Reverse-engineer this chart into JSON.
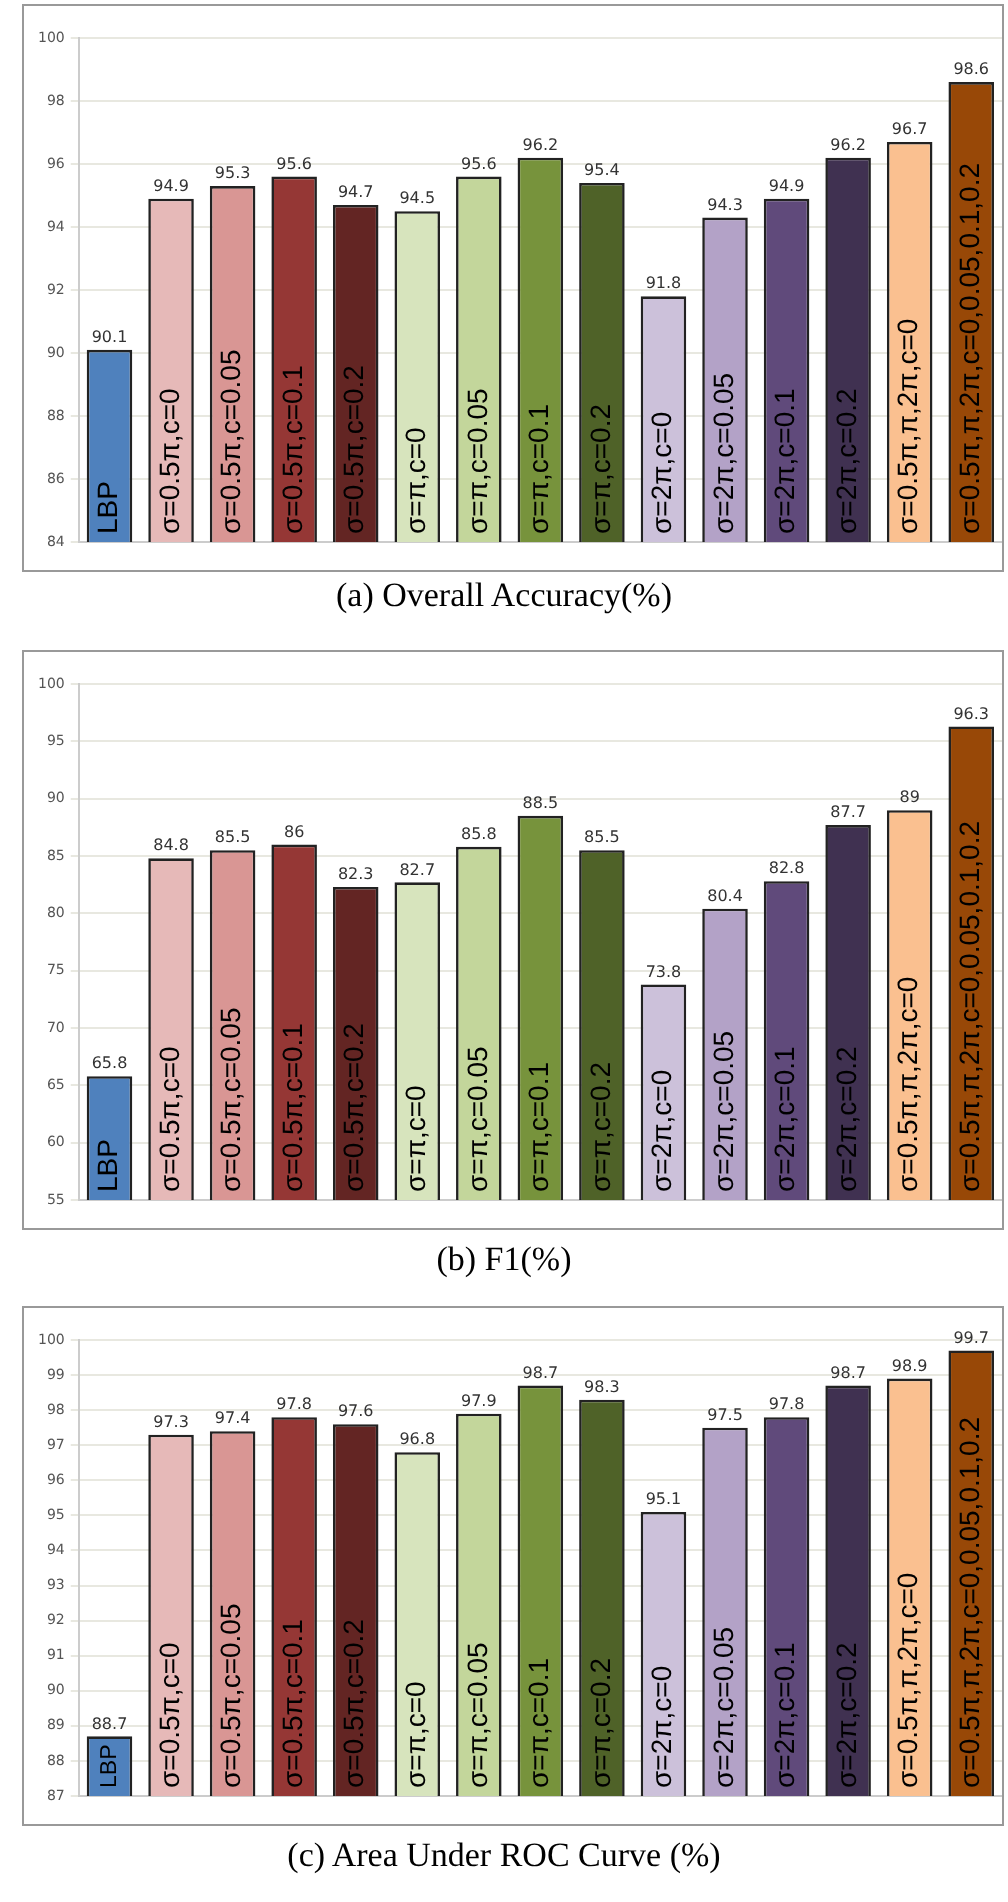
{
  "chart_data": [
    {
      "type": "bar",
      "title": "(a) Overall Accuracy(%)",
      "categories": [
        "LBP",
        "σ=0.5π,c=0",
        "σ=0.5π,c=0.05",
        "σ=0.5π,c=0.1",
        "σ=0.5π,c=0.2",
        "σ=π,c=0",
        "σ=π,c=0.05",
        "σ=π,c=0.1",
        "σ=π,c=0.2",
        "σ=2π,c=0",
        "σ=2π,c=0.05",
        "σ=2π,c=0.1",
        "σ=2π,c=0.2",
        "σ=0.5π,π,2π,c=0",
        "σ=0.5π,π,2π,c=0,0.05,0.1,0.2"
      ],
      "values": [
        90.1,
        94.9,
        95.3,
        95.6,
        94.7,
        94.5,
        95.6,
        96.2,
        95.4,
        91.8,
        94.3,
        94.9,
        96.2,
        96.7,
        98.6
      ],
      "colors": [
        "#4f81bd",
        "#e6b9b8",
        "#d99694",
        "#953735",
        "#632523",
        "#d7e4bd",
        "#c3d69b",
        "#77933c",
        "#4f6228",
        "#ccc1da",
        "#b3a2c7",
        "#604a7b",
        "#403151",
        "#fac090",
        "#984807"
      ],
      "ylim": [
        84,
        100
      ],
      "yticks": [
        84,
        86,
        88,
        90,
        92,
        94,
        96,
        98,
        100
      ],
      "grid": "y",
      "data_labels": true
    },
    {
      "type": "bar",
      "title": "(b) F1(%)",
      "categories": [
        "LBP",
        "σ=0.5π,c=0",
        "σ=0.5π,c=0.05",
        "σ=0.5π,c=0.1",
        "σ=0.5π,c=0.2",
        "σ=π,c=0",
        "σ=π,c=0.05",
        "σ=π,c=0.1",
        "σ=π,c=0.2",
        "σ=2π,c=0",
        "σ=2π,c=0.05",
        "σ=2π,c=0.1",
        "σ=2π,c=0.2",
        "σ=0.5π,π,2π,c=0",
        "σ=0.5π,π,2π,c=0,0.05,0.1,0.2"
      ],
      "values": [
        65.8,
        84.8,
        85.5,
        86,
        82.3,
        82.7,
        85.8,
        88.5,
        85.5,
        73.8,
        80.4,
        82.8,
        87.7,
        89,
        96.3
      ],
      "colors": [
        "#4f81bd",
        "#e6b9b8",
        "#d99694",
        "#953735",
        "#632523",
        "#d7e4bd",
        "#c3d69b",
        "#77933c",
        "#4f6228",
        "#ccc1da",
        "#b3a2c7",
        "#604a7b",
        "#403151",
        "#fac090",
        "#984807"
      ],
      "ylim": [
        55,
        100
      ],
      "yticks": [
        55,
        60,
        65,
        70,
        75,
        80,
        85,
        90,
        95,
        100
      ],
      "grid": "y",
      "data_labels": true
    },
    {
      "type": "bar",
      "title": "(c) Area Under ROC Curve (%)",
      "categories": [
        "LBP",
        "σ=0.5π,c=0",
        "σ=0.5π,c=0.05",
        "σ=0.5π,c=0.1",
        "σ=0.5π,c=0.2",
        "σ=π,c=0",
        "σ=π,c=0.05",
        "σ=π,c=0.1",
        "σ=π,c=0.2",
        "σ=2π,c=0",
        "σ=2π,c=0.05",
        "σ=2π,c=0.1",
        "σ=2π,c=0.2",
        "σ=0.5π,π,2π,c=0",
        "σ=0.5π,π,2π,c=0,0.05,0.1,0.2"
      ],
      "values": [
        88.7,
        97.3,
        97.4,
        97.8,
        97.6,
        96.8,
        97.9,
        98.7,
        98.3,
        95.1,
        97.5,
        97.8,
        98.7,
        98.9,
        99.7
      ],
      "colors": [
        "#4f81bd",
        "#e6b9b8",
        "#d99694",
        "#953735",
        "#632523",
        "#d7e4bd",
        "#c3d69b",
        "#77933c",
        "#4f6228",
        "#ccc1da",
        "#b3a2c7",
        "#604a7b",
        "#403151",
        "#fac090",
        "#984807"
      ],
      "ylim": [
        87,
        100
      ],
      "yticks": [
        87,
        88,
        89,
        90,
        91,
        92,
        93,
        94,
        95,
        96,
        97,
        98,
        99,
        100
      ],
      "grid": "y",
      "data_labels": true
    }
  ]
}
